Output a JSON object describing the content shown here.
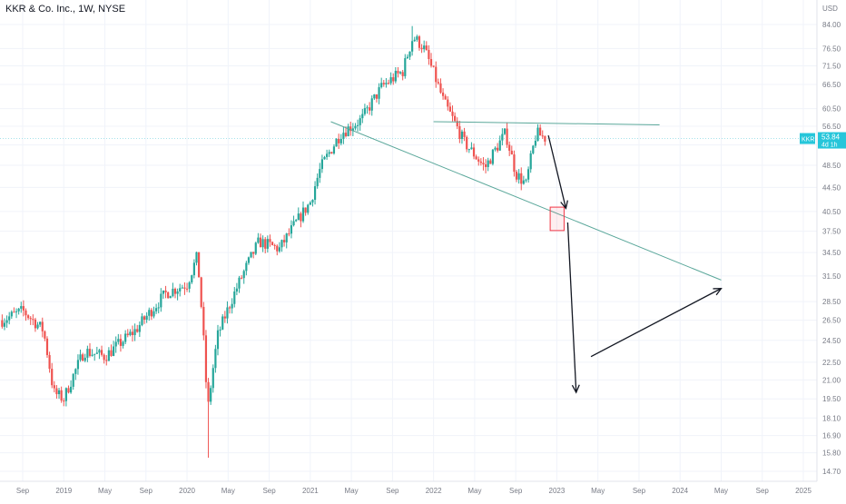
{
  "header": {
    "title": "KKR & Co. Inc., 1W, NYSE"
  },
  "chart_data": {
    "type": "candlestick",
    "title": "KKR & Co. Inc., 1W, NYSE",
    "currency": "USD",
    "ticker": "KKR",
    "last_price": "53.84",
    "time_to_close": "4d 1h",
    "y_scale": "log",
    "ylim": [
      14.2,
      94
    ],
    "y_ticks": [
      "84.00",
      "76.50",
      "71.50",
      "66.50",
      "60.50",
      "56.50",
      "52.50",
      "48.50",
      "44.50",
      "40.50",
      "37.50",
      "34.50",
      "31.50",
      "28.50",
      "26.50",
      "24.50",
      "22.50",
      "21.00",
      "19.50",
      "18.10",
      "16.90",
      "15.80",
      "14.70"
    ],
    "x_ticks": [
      "Sep",
      "2019",
      "May",
      "Sep",
      "2020",
      "May",
      "Sep",
      "2021",
      "May",
      "Sep",
      "2022",
      "May",
      "Sep",
      "2023",
      "May",
      "Sep",
      "2024",
      "May",
      "Sep",
      "2025"
    ],
    "x_tick_dates": [
      "2018-09",
      "2019-01",
      "2019-05",
      "2019-09",
      "2020-01",
      "2020-05",
      "2020-09",
      "2021-01",
      "2021-05",
      "2021-09",
      "2022-01",
      "2022-05",
      "2022-09",
      "2023-01",
      "2023-05",
      "2023-09",
      "2024-01",
      "2024-05",
      "2024-09",
      "2025-01"
    ],
    "colors": {
      "up": "#26a69a",
      "down": "#ef5350",
      "trendline": "#5aa79a",
      "ticker_badge": "#26c6da",
      "arrow": "#131722",
      "box": "#f23645"
    },
    "price_path": [
      [
        "2018-07",
        26.5
      ],
      [
        "2018-09",
        27.5
      ],
      [
        "2018-11",
        25.5
      ],
      [
        "2018-12",
        20.0
      ],
      [
        "2019-01",
        19.5
      ],
      [
        "2019-03",
        23.5
      ],
      [
        "2019-05",
        23.0
      ],
      [
        "2019-08",
        25.5
      ],
      [
        "2019-11",
        29.5
      ],
      [
        "2020-01",
        30.5
      ],
      [
        "2020-02",
        34.0
      ],
      [
        "2020-03",
        18.5
      ],
      [
        "2020-04",
        25.0
      ],
      [
        "2020-06",
        30.5
      ],
      [
        "2020-08",
        36.0
      ],
      [
        "2020-10",
        35.0
      ],
      [
        "2021-01",
        42.0
      ],
      [
        "2021-02",
        48.0
      ],
      [
        "2021-04",
        55.0
      ],
      [
        "2021-06",
        58.0
      ],
      [
        "2021-08",
        66.0
      ],
      [
        "2021-10",
        70.0
      ],
      [
        "2021-11",
        80.0
      ],
      [
        "2021-12",
        77.0
      ],
      [
        "2022-02",
        62.0
      ],
      [
        "2022-04",
        53.0
      ],
      [
        "2022-06",
        48.0
      ],
      [
        "2022-08",
        55.0
      ],
      [
        "2022-09",
        47.0
      ],
      [
        "2022-10",
        45.0
      ],
      [
        "2022-11",
        55.0
      ],
      [
        "2022-12",
        53.8
      ]
    ],
    "wicks": [
      {
        "date": "2020-03",
        "low": 15.5
      },
      {
        "date": "2021-11",
        "high": 83.5
      }
    ],
    "drawings": {
      "resistance_line": [
        [
          "2022-01",
          57.5
        ],
        [
          "2023-11",
          56.8
        ]
      ],
      "support_line": [
        [
          "2021-03",
          57.5
        ],
        [
          "2024-05",
          31.0
        ]
      ],
      "target_box": [
        [
          "2022-12",
          41.2
        ],
        [
          "2023-01",
          37.6
        ]
      ],
      "arrow_1": [
        [
          "2022-12",
          54.5
        ],
        [
          "2023-01",
          41.0
        ]
      ],
      "arrow_2": [
        [
          "2023-01",
          38.8
        ],
        [
          "2023-02",
          20.0
        ]
      ],
      "arrow_3": [
        [
          "2023-03",
          23.0
        ],
        [
          "2024-05",
          30.0
        ]
      ]
    }
  }
}
